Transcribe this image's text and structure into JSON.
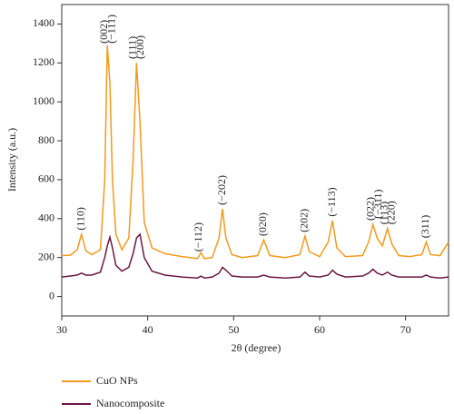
{
  "chart_data": {
    "type": "line",
    "x_label": "2θ (degree)",
    "y_label": "Intensity (a.u.)",
    "xlim": [
      30,
      75
    ],
    "ylim": [
      -100,
      1500
    ],
    "xticks": [
      30,
      40,
      50,
      60,
      70
    ],
    "yticks": [
      0,
      200,
      400,
      600,
      800,
      1000,
      1200,
      1400
    ],
    "x": [
      30,
      31,
      31.8,
      32.3,
      32.8,
      33.5,
      34.5,
      35,
      35.3,
      35.6,
      35.9,
      36.3,
      37,
      37.8,
      38.3,
      38.7,
      39.1,
      39.6,
      40.5,
      42,
      44,
      45.8,
      46.2,
      46.6,
      47.5,
      48.3,
      48.7,
      49.1,
      49.8,
      51,
      52.8,
      53.5,
      54.2,
      56,
      57.7,
      58.3,
      58.8,
      60,
      61,
      61.5,
      62,
      63,
      65,
      65.7,
      66.2,
      66.7,
      67.3,
      67.9,
      68.4,
      69.2,
      70.5,
      71.9,
      72.4,
      72.9,
      74,
      75
    ],
    "series": [
      {
        "name": "CuO NPs",
        "color": "#f39a1e",
        "values": [
          210,
          212,
          240,
          320,
          235,
          215,
          240,
          600,
          1290,
          1100,
          600,
          320,
          240,
          300,
          700,
          1200,
          900,
          380,
          250,
          220,
          205,
          195,
          225,
          195,
          200,
          300,
          450,
          300,
          215,
          200,
          210,
          290,
          210,
          200,
          215,
          310,
          230,
          205,
          280,
          390,
          250,
          205,
          210,
          280,
          370,
          300,
          260,
          350,
          270,
          210,
          205,
          215,
          280,
          215,
          210,
          280
        ]
      },
      {
        "name": "Nanocomposite",
        "color": "#6b1744",
        "values": [
          100,
          105,
          110,
          120,
          110,
          110,
          125,
          200,
          260,
          305,
          250,
          160,
          130,
          150,
          220,
          300,
          320,
          200,
          130,
          110,
          100,
          95,
          105,
          95,
          100,
          120,
          150,
          135,
          105,
          100,
          100,
          110,
          100,
          95,
          100,
          125,
          105,
          100,
          110,
          135,
          115,
          100,
          105,
          120,
          140,
          120,
          110,
          125,
          110,
          100,
          100,
          100,
          110,
          100,
          95,
          100
        ]
      }
    ],
    "annotations": [
      {
        "text": "(110)",
        "x": 32.3,
        "y": 340
      },
      {
        "text": "(002)",
        "x": 35.0,
        "y": 1300
      },
      {
        "text": "(−111)",
        "x": 35.9,
        "y": 1300
      },
      {
        "text": "(111)",
        "x": 38.3,
        "y": 1220
      },
      {
        "text": "(200)",
        "x": 39.2,
        "y": 1220
      },
      {
        "text": "(−112)",
        "x": 46.0,
        "y": 230
      },
      {
        "text": "(−202)",
        "x": 48.7,
        "y": 470
      },
      {
        "text": "(020)",
        "x": 53.5,
        "y": 310
      },
      {
        "text": "(202)",
        "x": 58.3,
        "y": 330
      },
      {
        "text": "(−113)",
        "x": 61.5,
        "y": 410
      },
      {
        "text": "(022)",
        "x": 66.0,
        "y": 390
      },
      {
        "text": "(−311)",
        "x": 66.9,
        "y": 400
      },
      {
        "text": "(113)",
        "x": 67.6,
        "y": 370
      },
      {
        "text": "(220)",
        "x": 68.4,
        "y": 370
      },
      {
        "text": "(311)",
        "x": 72.4,
        "y": 300
      }
    ]
  }
}
